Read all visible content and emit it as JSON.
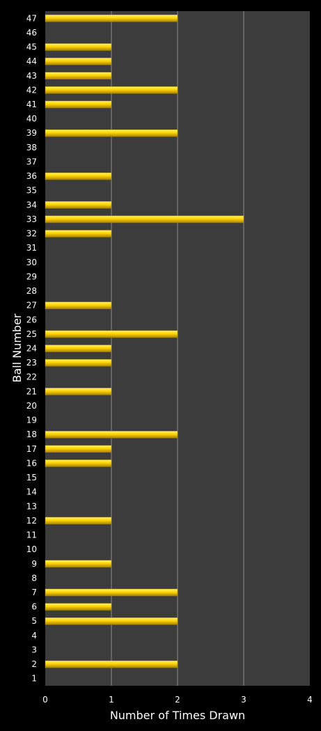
{
  "chart_data": {
    "type": "bar",
    "orientation": "horizontal",
    "title": "",
    "xlabel": "Number of Times Drawn",
    "ylabel": "Ball Number",
    "xlim": [
      0,
      4
    ],
    "xticks": [
      "0",
      "1",
      "2",
      "3",
      "4"
    ],
    "grid": "vertical",
    "legend": "none",
    "colors": {
      "background": "#000000",
      "plot_area": "#3c3c3c",
      "gridline": "#8a8a8a",
      "bar_light": "#fff36a",
      "bar_mid": "#ffd400",
      "bar_dark": "#a88300",
      "text": "#ffffff"
    },
    "categories": [
      "1",
      "2",
      "3",
      "4",
      "5",
      "6",
      "7",
      "8",
      "9",
      "10",
      "11",
      "12",
      "13",
      "14",
      "15",
      "16",
      "17",
      "18",
      "19",
      "20",
      "21",
      "22",
      "23",
      "24",
      "25",
      "26",
      "27",
      "28",
      "29",
      "30",
      "31",
      "32",
      "33",
      "34",
      "35",
      "36",
      "37",
      "38",
      "39",
      "40",
      "41",
      "42",
      "43",
      "44",
      "45",
      "46",
      "47"
    ],
    "values": [
      0,
      2,
      0,
      0,
      2,
      1,
      2,
      0,
      1,
      0,
      0,
      1,
      0,
      0,
      0,
      1,
      1,
      2,
      0,
      0,
      1,
      0,
      1,
      1,
      2,
      0,
      1,
      0,
      0,
      0,
      0,
      1,
      3,
      1,
      0,
      1,
      0,
      0,
      2,
      0,
      1,
      2,
      1,
      1,
      1,
      0,
      2
    ]
  }
}
